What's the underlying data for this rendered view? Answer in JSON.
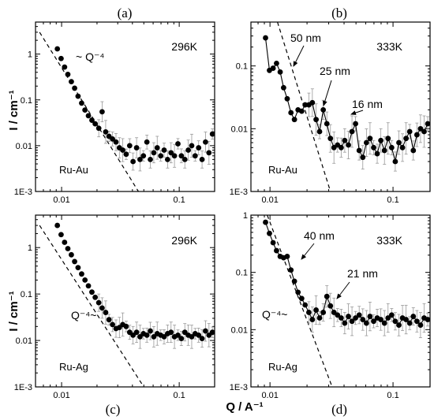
{
  "figure": {
    "ylabel_top": "I / cm⁻¹",
    "ylabel_bottom": "I / cm⁻¹",
    "xlabel": "Q / A⁻¹"
  },
  "chart_data": [
    {
      "id": "a",
      "panel_label": "(a)",
      "type": "scatter",
      "temperature": "296K",
      "sample": "Ru-Au",
      "xscale": "log",
      "yscale": "log",
      "xlim": [
        0.006,
        0.2
      ],
      "ylim": [
        0.001,
        5
      ],
      "xticks": [
        0.01,
        0.1
      ],
      "xtick_labels": [
        "0.01",
        "0.1"
      ],
      "yticks": [
        0.001,
        0.01,
        0.1,
        1
      ],
      "ytick_labels": [
        "1E-3",
        "0.01",
        "0.1",
        "1"
      ],
      "annotation": "~ Q⁻⁴",
      "reference_line": {
        "points": [
          [
            0.0065,
            3.0
          ],
          [
            0.045,
            0.001
          ]
        ],
        "style": "dashed"
      },
      "connect_points": false,
      "error_bars": true,
      "x": [
        0.0092,
        0.0099,
        0.0106,
        0.0113,
        0.0121,
        0.0129,
        0.0138,
        0.0148,
        0.0158,
        0.0169,
        0.0181,
        0.0193,
        0.0207,
        0.0221,
        0.0237,
        0.0253,
        0.0271,
        0.029,
        0.031,
        0.0331,
        0.0354,
        0.0379,
        0.0405,
        0.0434,
        0.0464,
        0.0496,
        0.0531,
        0.0568,
        0.0608,
        0.065,
        0.0696,
        0.0744,
        0.0796,
        0.0852,
        0.0911,
        0.0975,
        0.1043,
        0.1116,
        0.1194,
        0.1277,
        0.1366,
        0.1462,
        0.1564,
        0.1673,
        0.179,
        0.1915
      ],
      "y": [
        1.3,
        0.8,
        0.52,
        0.36,
        0.25,
        0.18,
        0.12,
        0.085,
        0.06,
        0.045,
        0.036,
        0.03,
        0.024,
        0.055,
        0.02,
        0.016,
        0.014,
        0.012,
        0.009,
        0.008,
        0.0065,
        0.01,
        0.0045,
        0.009,
        0.005,
        0.006,
        0.012,
        0.005,
        0.007,
        0.009,
        0.006,
        0.008,
        0.005,
        0.007,
        0.006,
        0.011,
        0.006,
        0.005,
        0.008,
        0.01,
        0.006,
        0.009,
        0.005,
        0.012,
        0.007,
        0.018
      ]
    },
    {
      "id": "b",
      "panel_label": "(b)",
      "type": "line",
      "temperature": "333K",
      "sample": "Ru-Au",
      "xscale": "log",
      "yscale": "log",
      "xlim": [
        0.007,
        0.2
      ],
      "ylim": [
        0.001,
        0.5
      ],
      "xticks": [
        0.01,
        0.1
      ],
      "xtick_labels": [
        "0.01",
        "0.1"
      ],
      "yticks": [
        0.001,
        0.01,
        0.1
      ],
      "ytick_labels": [
        "1E-3",
        "0.01",
        "0.1"
      ],
      "reference_line": {
        "points": [
          [
            0.0115,
            0.5
          ],
          [
            0.031,
            0.001
          ]
        ],
        "style": "dashed"
      },
      "connect_points": true,
      "error_bars": true,
      "annotations": [
        {
          "text": "50 nm",
          "x": 0.0125,
          "y": 0.12
        },
        {
          "text": "25 nm",
          "x": 0.027,
          "y": 0.028
        },
        {
          "text": "16 nm",
          "x": 0.036,
          "y": 0.02
        }
      ],
      "x": [
        0.0092,
        0.0099,
        0.0106,
        0.0113,
        0.0121,
        0.0129,
        0.0138,
        0.0148,
        0.0158,
        0.0169,
        0.0181,
        0.0193,
        0.0207,
        0.0221,
        0.0237,
        0.0253,
        0.0271,
        0.029,
        0.031,
        0.0331,
        0.0354,
        0.0379,
        0.0405,
        0.0434,
        0.0464,
        0.0496,
        0.0531,
        0.0568,
        0.0608,
        0.065,
        0.0696,
        0.0744,
        0.0796,
        0.0852,
        0.0911,
        0.0975,
        0.1043,
        0.1116,
        0.1194,
        0.1277,
        0.1366,
        0.1462,
        0.1564,
        0.1673,
        0.179,
        0.1915
      ],
      "y": [
        0.28,
        0.085,
        0.092,
        0.11,
        0.08,
        0.045,
        0.03,
        0.018,
        0.014,
        0.02,
        0.019,
        0.024,
        0.024,
        0.026,
        0.014,
        0.009,
        0.02,
        0.012,
        0.007,
        0.005,
        0.0055,
        0.005,
        0.0065,
        0.0055,
        0.009,
        0.012,
        0.0045,
        0.0035,
        0.006,
        0.007,
        0.005,
        0.004,
        0.0065,
        0.0045,
        0.007,
        0.005,
        0.003,
        0.006,
        0.005,
        0.007,
        0.009,
        0.0045,
        0.008,
        0.01,
        0.009,
        0.012
      ]
    },
    {
      "id": "c",
      "panel_label": "(c)",
      "type": "scatter",
      "temperature": "296K",
      "sample": "Ru-Ag",
      "xscale": "log",
      "yscale": "log",
      "xlim": [
        0.006,
        0.2
      ],
      "ylim": [
        0.001,
        5
      ],
      "xticks": [
        0.01,
        0.1
      ],
      "xtick_labels": [
        "0.01",
        "0.1"
      ],
      "yticks": [
        0.001,
        0.01,
        0.1,
        1
      ],
      "ytick_labels": [
        "1E-3",
        "0.01",
        "0.1",
        "1"
      ],
      "annotation": "Q⁻⁴~",
      "reference_line": {
        "points": [
          [
            0.0065,
            3.0
          ],
          [
            0.05,
            0.001
          ]
        ],
        "style": "dashed"
      },
      "connect_points": false,
      "error_bars": true,
      "x": [
        0.0092,
        0.0099,
        0.0106,
        0.0113,
        0.0121,
        0.0129,
        0.0138,
        0.0148,
        0.0158,
        0.0169,
        0.0181,
        0.0193,
        0.0207,
        0.0221,
        0.0237,
        0.0253,
        0.0271,
        0.029,
        0.031,
        0.0331,
        0.0354,
        0.0379,
        0.0405,
        0.0434,
        0.0464,
        0.0496,
        0.0531,
        0.0568,
        0.0608,
        0.065,
        0.0696,
        0.0744,
        0.0796,
        0.0852,
        0.0911,
        0.0975,
        0.1043,
        0.1116,
        0.1194,
        0.1277,
        0.1366,
        0.1462,
        0.1564,
        0.1673,
        0.179,
        0.1915
      ],
      "y": [
        3.0,
        1.9,
        1.3,
        0.95,
        0.7,
        0.5,
        0.37,
        0.27,
        0.2,
        0.15,
        0.11,
        0.085,
        0.065,
        0.05,
        0.04,
        0.028,
        0.022,
        0.018,
        0.019,
        0.022,
        0.02,
        0.015,
        0.013,
        0.015,
        0.012,
        0.014,
        0.013,
        0.016,
        0.012,
        0.014,
        0.013,
        0.012,
        0.014,
        0.015,
        0.012,
        0.013,
        0.011,
        0.015,
        0.013,
        0.012,
        0.014,
        0.013,
        0.011,
        0.016,
        0.013,
        0.015
      ]
    },
    {
      "id": "d",
      "panel_label": "(d)",
      "type": "line",
      "temperature": "333K",
      "sample": "Ru-Ag",
      "xscale": "log",
      "yscale": "log",
      "xlim": [
        0.007,
        0.2
      ],
      "ylim": [
        0.001,
        1
      ],
      "xticks": [
        0.01,
        0.1
      ],
      "xtick_labels": [
        "0.01",
        "0.1"
      ],
      "yticks": [
        0.001,
        0.01,
        0.1,
        1
      ],
      "ytick_labels": [
        "1E-3",
        "0.01",
        "0.1",
        "1"
      ],
      "annotation": "Q⁻⁴~",
      "reference_line": {
        "points": [
          [
            0.0095,
            1.0
          ],
          [
            0.032,
            0.001
          ]
        ],
        "style": "dashed"
      },
      "connect_points": true,
      "error_bars": true,
      "annotations": [
        {
          "text": "40 nm",
          "x": 0.0158,
          "y": 0.2
        },
        {
          "text": "21 nm",
          "x": 0.029,
          "y": 0.038
        }
      ],
      "x": [
        0.0092,
        0.0099,
        0.0106,
        0.0113,
        0.0121,
        0.0129,
        0.0138,
        0.0148,
        0.0158,
        0.0169,
        0.0181,
        0.0193,
        0.0207,
        0.0221,
        0.0237,
        0.0253,
        0.0271,
        0.029,
        0.031,
        0.0331,
        0.0354,
        0.0379,
        0.0405,
        0.0434,
        0.0464,
        0.0496,
        0.0531,
        0.0568,
        0.0608,
        0.065,
        0.0696,
        0.0744,
        0.0796,
        0.0852,
        0.0911,
        0.0975,
        0.1043,
        0.1116,
        0.1194,
        0.1277,
        0.1366,
        0.1462,
        0.1564,
        0.1673,
        0.179,
        0.1915
      ],
      "y": [
        0.75,
        0.48,
        0.33,
        0.24,
        0.19,
        0.18,
        0.19,
        0.11,
        0.07,
        0.045,
        0.035,
        0.027,
        0.02,
        0.015,
        0.022,
        0.016,
        0.02,
        0.038,
        0.026,
        0.02,
        0.018,
        0.016,
        0.013,
        0.017,
        0.014,
        0.016,
        0.018,
        0.015,
        0.013,
        0.017,
        0.014,
        0.016,
        0.015,
        0.013,
        0.016,
        0.018,
        0.014,
        0.012,
        0.016,
        0.015,
        0.013,
        0.017,
        0.014,
        0.012,
        0.016,
        0.015
      ]
    }
  ]
}
